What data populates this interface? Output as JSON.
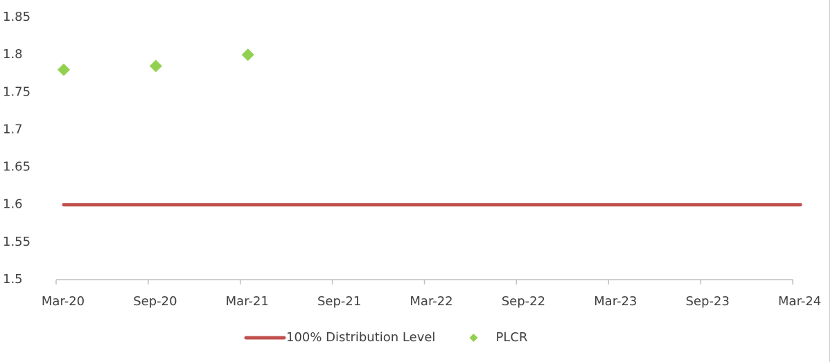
{
  "chart_data": {
    "type": "line",
    "categories": [
      "Mar-20",
      "Sep-20",
      "Mar-21",
      "Sep-21",
      "Mar-22",
      "Sep-22",
      "Mar-23",
      "Sep-23",
      "Mar-24"
    ],
    "series": [
      {
        "name": "100% Distribution Level",
        "color": "#c0504d",
        "style": "line",
        "values": [
          1.6,
          1.6,
          1.6,
          1.6,
          1.6,
          1.6,
          1.6,
          1.6,
          1.6
        ]
      },
      {
        "name": "PLCR",
        "color": "#92d050",
        "style": "marker",
        "values": [
          1.78,
          1.785,
          1.8,
          null,
          null,
          null,
          null,
          null,
          null
        ]
      }
    ],
    "ylim": [
      1.5,
      1.85
    ],
    "yticks": [
      1.5,
      1.55,
      1.6,
      1.65,
      1.7,
      1.75,
      1.8,
      1.85
    ],
    "grid": false,
    "legend": "bottom"
  }
}
